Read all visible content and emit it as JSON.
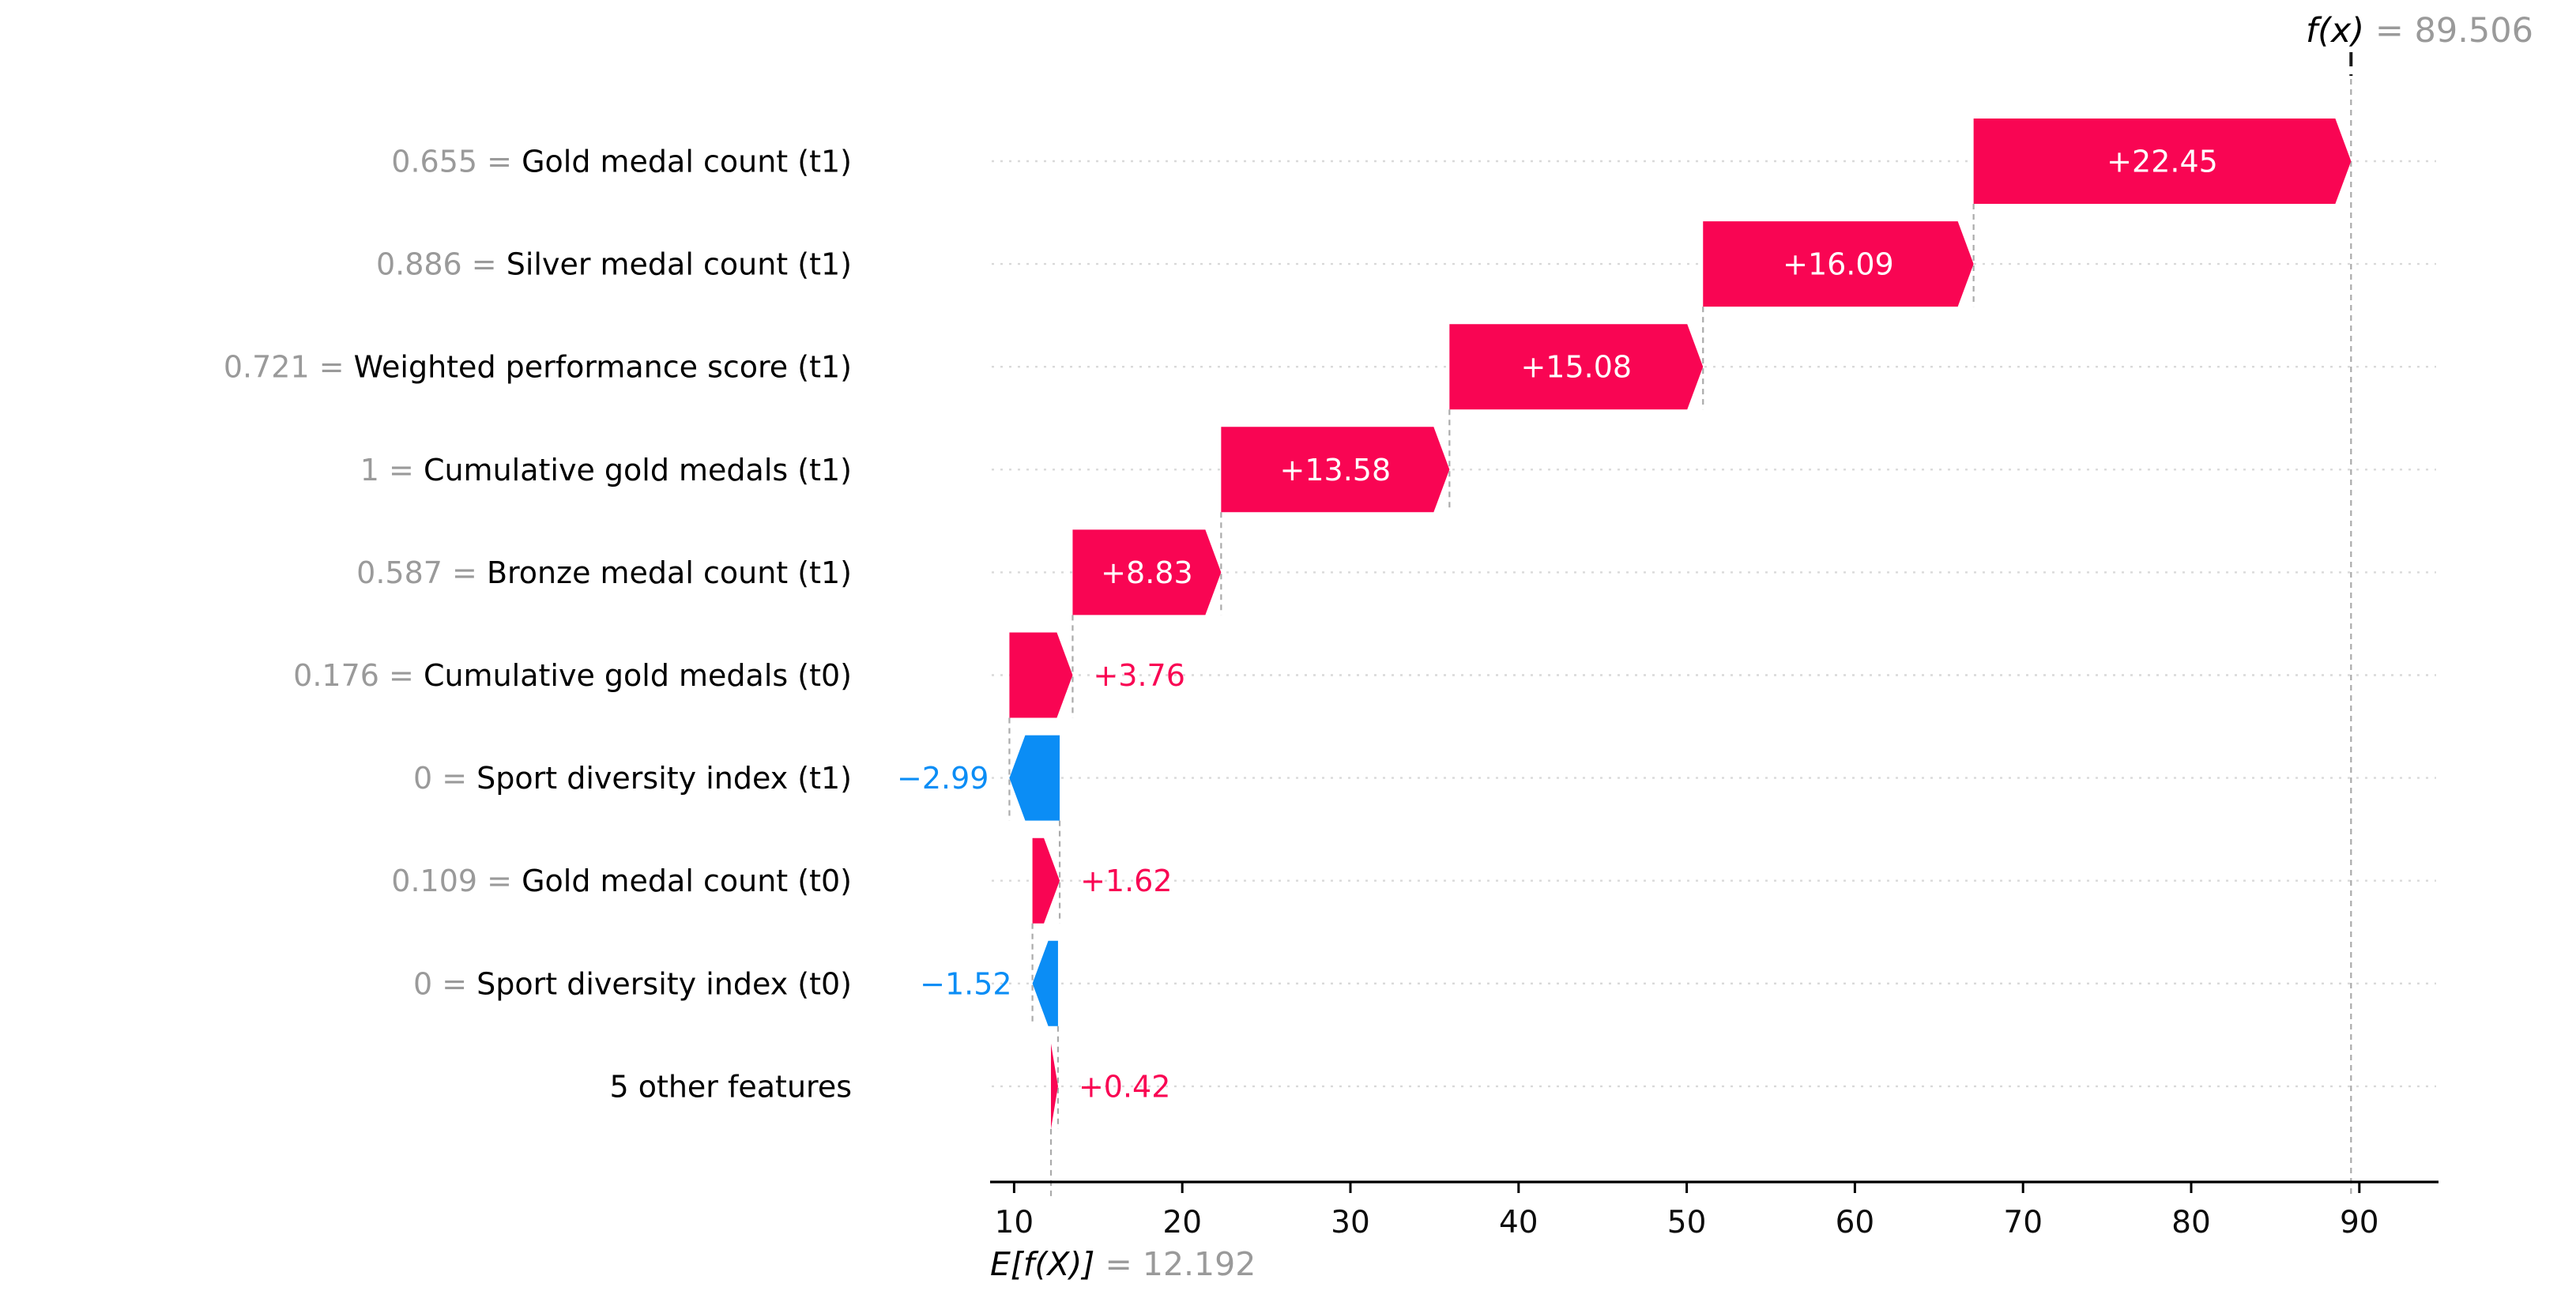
{
  "colors": {
    "positive": "#f90553",
    "negative": "#0b8df5",
    "gray_text": "#9a9a9a",
    "feature_text": "#000000",
    "tick_text": "#0d0d0d",
    "gridline": "#d9d9d9",
    "connector": "#ababab",
    "axis": "#000000",
    "inside_label": "#ffffff"
  },
  "header": {
    "fx_label": "f(x)",
    "fx_value": " = 89.506"
  },
  "footer": {
    "ef_label": "E[f(X)]",
    "ef_value": " = 12.192"
  },
  "chart_data": {
    "type": "waterfall",
    "base_value": 12.192,
    "final_value": 89.506,
    "x_axis": {
      "ticks": [
        10,
        20,
        30,
        40,
        50,
        60,
        70,
        80,
        90
      ],
      "grid": "horizontal-dotted",
      "legend": "none"
    },
    "rows": [
      {
        "feature_value": "0.655",
        "feature": "Gold medal count (t1)",
        "shap": 22.45,
        "label": "+22.45",
        "start_x": 67.06,
        "end_x": 89.51
      },
      {
        "feature_value": "0.886",
        "feature": "Silver medal count (t1)",
        "shap": 16.09,
        "label": "+16.09",
        "start_x": 50.97,
        "end_x": 67.06
      },
      {
        "feature_value": "0.721",
        "feature": "Weighted performance score (t1)",
        "shap": 15.08,
        "label": "+15.08",
        "start_x": 35.89,
        "end_x": 50.97
      },
      {
        "feature_value": "1",
        "feature": "Cumulative gold medals (t1)",
        "shap": 13.58,
        "label": "+13.58",
        "start_x": 22.31,
        "end_x": 35.89
      },
      {
        "feature_value": "0.587",
        "feature": "Bronze medal count (t1)",
        "shap": 8.83,
        "label": "+8.83",
        "start_x": 13.48,
        "end_x": 22.31
      },
      {
        "feature_value": "0.176",
        "feature": "Cumulative gold medals (t0)",
        "shap": 3.76,
        "label": "+3.76",
        "start_x": 9.72,
        "end_x": 13.48
      },
      {
        "feature_value": "0",
        "feature": "Sport diversity index (t1)",
        "shap": -2.99,
        "label": "−2.99",
        "start_x": 12.71,
        "end_x": 9.72
      },
      {
        "feature_value": "0.109",
        "feature": "Gold medal count (t0)",
        "shap": 1.62,
        "label": "+1.62",
        "start_x": 11.09,
        "end_x": 12.71
      },
      {
        "feature_value": "0",
        "feature": "Sport diversity index (t0)",
        "shap": -1.52,
        "label": "−1.52",
        "start_x": 12.61,
        "end_x": 11.09
      },
      {
        "feature_value": "",
        "feature": "5 other features",
        "shap": 0.42,
        "label": "+0.42",
        "start_x": 12.19,
        "end_x": 12.61
      }
    ]
  }
}
